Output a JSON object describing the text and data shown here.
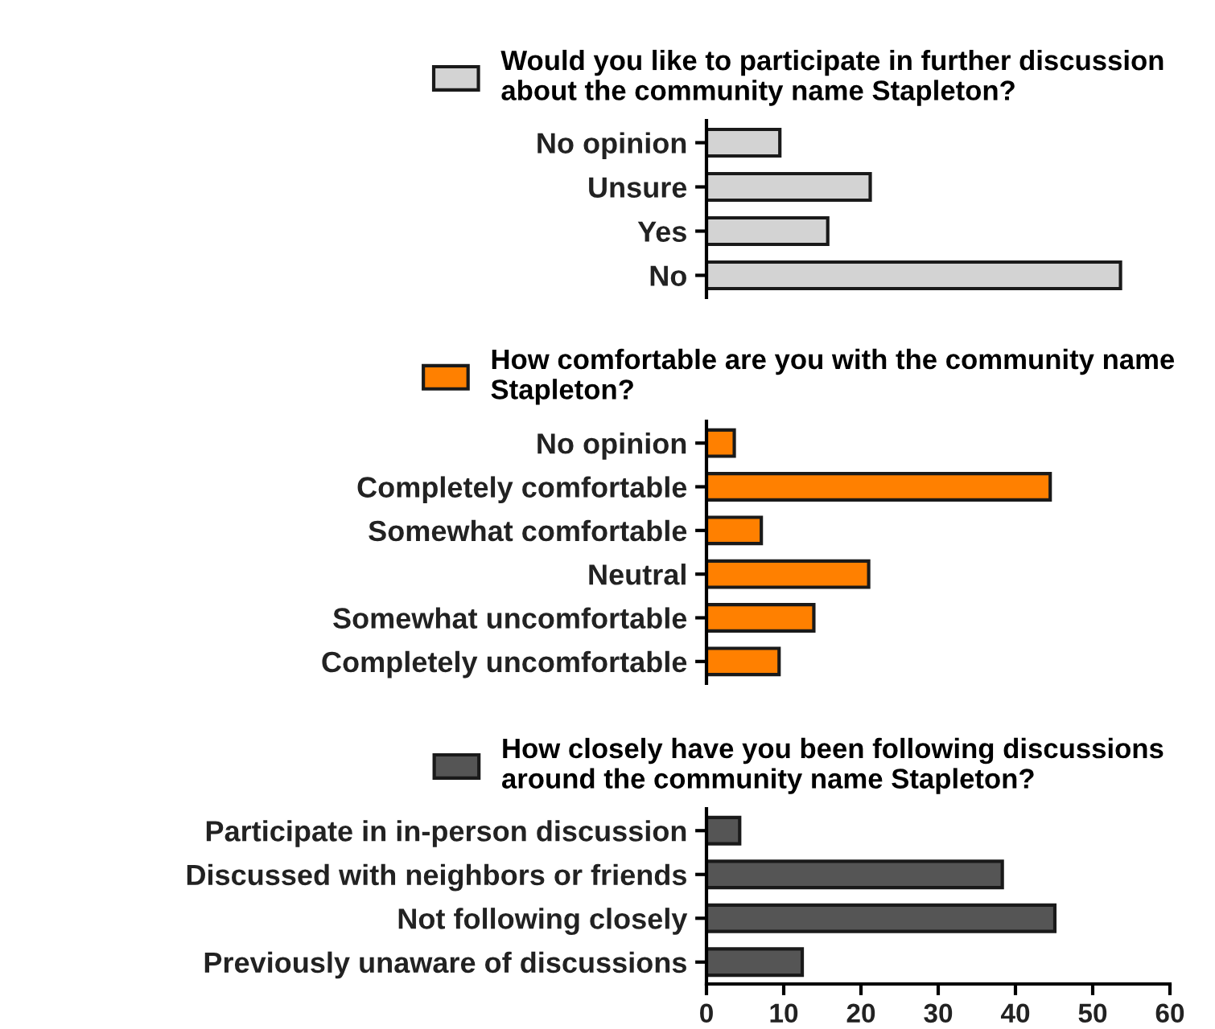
{
  "chart_data": [
    {
      "type": "bar",
      "orientation": "horizontal",
      "categories": [
        "No opinion",
        "Unsure",
        "Yes",
        "No"
      ],
      "series": [
        {
          "name": "Would you like to participate in further discussion\nabout the community name Stapleton?",
          "color": "#d3d3d3",
          "values": [
            9.5,
            21.2,
            15.7,
            53.6
          ]
        }
      ],
      "xlim": [
        0,
        60
      ],
      "tick_labels": "y",
      "legend": "top"
    },
    {
      "type": "bar",
      "orientation": "horizontal",
      "categories": [
        "No opinion",
        "Completely comfortable",
        "Somewhat comfortable",
        "Neutral",
        "Somewhat uncomfortable",
        "Completely uncomfortable"
      ],
      "series": [
        {
          "name": "How comfortable are you with the community name\nStapleton?",
          "color": "#ff8000",
          "values": [
            3.6,
            44.5,
            7.1,
            21.0,
            13.9,
            9.4
          ]
        }
      ],
      "xlim": [
        0,
        60
      ],
      "tick_labels": "y",
      "legend": "top"
    },
    {
      "type": "bar",
      "orientation": "horizontal",
      "categories": [
        "Participate in in-person discussion",
        "Discussed with neighbors or friends",
        "Not following closely",
        "Previously unaware of discussions"
      ],
      "series": [
        {
          "name": "How closely have you been following discussions\naround the community name Stapleton?",
          "color": "#555555",
          "values": [
            4.3,
            38.3,
            45.1,
            12.4
          ]
        }
      ],
      "xlim": [
        0,
        60
      ],
      "xticks": [
        0,
        10,
        20,
        30,
        40,
        50,
        60
      ],
      "legend": "top"
    }
  ]
}
